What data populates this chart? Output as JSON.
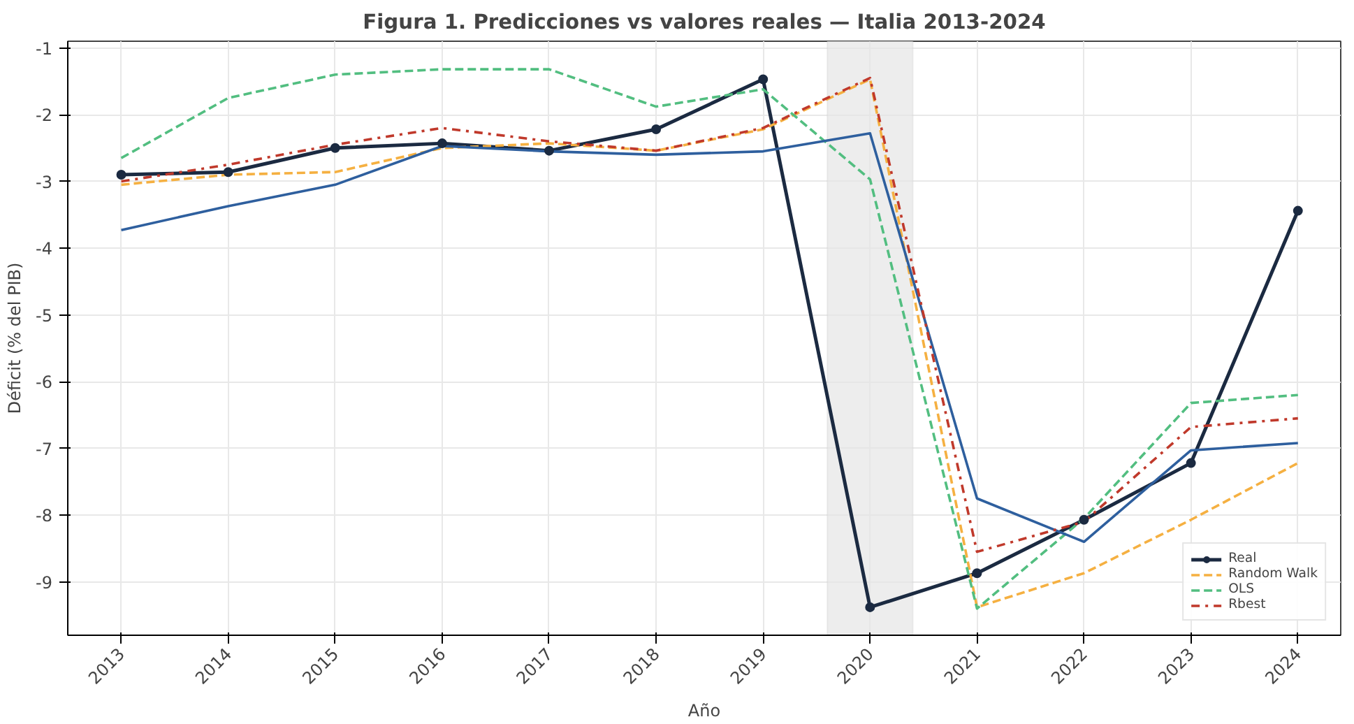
{
  "chart_data": {
    "type": "line",
    "title": "Figura 1. Predicciones vs valores reales — Italia 2013-2024",
    "xlabel": "Año",
    "ylabel": "Déficit (% del PIB)",
    "x": [
      2013,
      2014,
      2015,
      2016,
      2017,
      2018,
      2019,
      2020,
      2021,
      2022,
      2023,
      2024
    ],
    "xlim": [
      2012.5,
      2024.4
    ],
    "xticks": [
      2013,
      2014,
      2015,
      2016,
      2017,
      2018,
      2019,
      2020,
      2021,
      2022,
      2023,
      2024
    ],
    "ylim": [
      -9.8,
      -0.9
    ],
    "yticks": [
      -9,
      -8,
      -7,
      -6,
      -5,
      -4,
      -3,
      -2,
      -1
    ],
    "grid": true,
    "legend": "bottom right",
    "bands": [
      {
        "axis": "x",
        "from": 2019.6,
        "to": 2020.4,
        "color": "#e6e6e6"
      }
    ],
    "series": [
      {
        "name": "Real",
        "color": "#1b2a41",
        "marker": "circle",
        "line_style": "solid",
        "values": [
          -2.9,
          -2.86,
          -2.5,
          -2.43,
          -2.54,
          -2.22,
          -1.47,
          -9.38,
          -8.87,
          -8.07,
          -7.22,
          -3.44
        ]
      },
      {
        "name": "Random Walk",
        "color": "#f5b041",
        "marker": "none",
        "line_style": "dashed",
        "values": [
          -3.05,
          -2.9,
          -2.86,
          -2.5,
          -2.43,
          -2.54,
          -2.22,
          -1.47,
          -9.38,
          -8.87,
          -8.07,
          -7.22
        ]
      },
      {
        "name": "OLS",
        "color": "#52be80",
        "marker": "none",
        "line_style": "dashed",
        "values": [
          -2.65,
          -1.75,
          -1.4,
          -1.32,
          -1.32,
          -1.88,
          -1.62,
          -2.97,
          -9.4,
          -8.05,
          -6.32,
          -6.2
        ]
      },
      {
        "color": "#2e5f9e",
        "marker": "none",
        "line_style": "solid",
        "values": [
          -3.73,
          -3.37,
          -3.05,
          -2.47,
          -2.55,
          -2.6,
          -2.55,
          -2.28,
          -7.75,
          -8.4,
          -7.03,
          -6.92
        ]
      },
      {
        "name": "Rbest",
        "color": "#c0392b",
        "marker": "none",
        "line_style": "dashdot",
        "values": [
          -3.0,
          -2.75,
          -2.45,
          -2.2,
          -2.4,
          -2.54,
          -2.2,
          -1.45,
          -8.55,
          -8.1,
          -6.68,
          -6.55
        ]
      }
    ]
  }
}
